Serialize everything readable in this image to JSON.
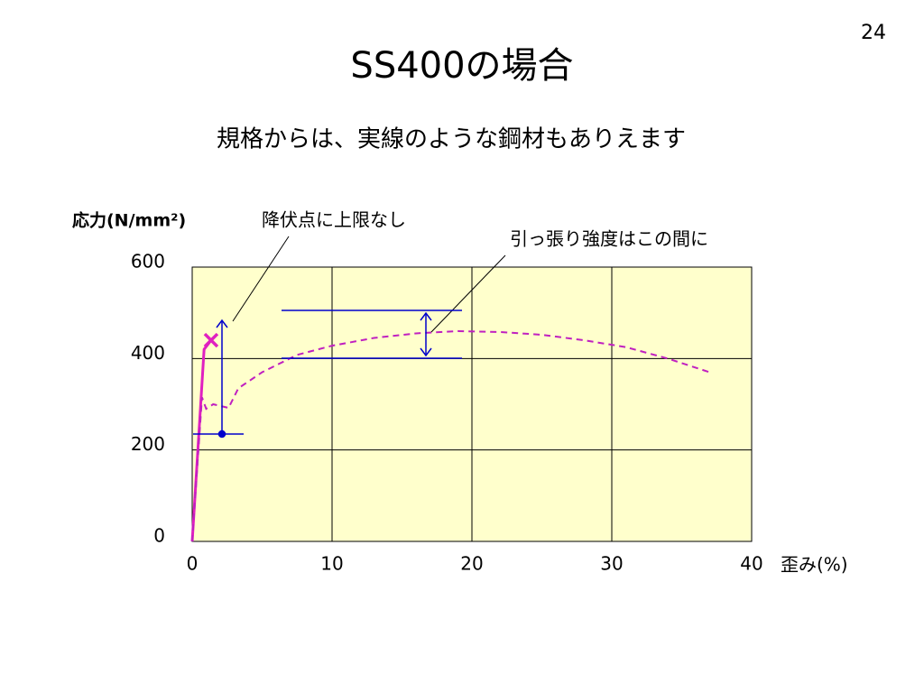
{
  "page_number": "24",
  "chart_data": {
    "type": "line",
    "title": "SS400の場合",
    "subtitle": "規格からは、実線のような鋼材もありえます",
    "ylabel": "応力(N/mm²)",
    "xlabel": "歪み(%)",
    "annotations": [
      "降伏点に上限なし",
      "引っ張り強度はこの間に"
    ],
    "xlim": [
      0,
      40
    ],
    "xticks": [
      0,
      10,
      20,
      30,
      40
    ],
    "ylim": [
      0,
      600
    ],
    "yticks": [
      0,
      200,
      400,
      600
    ],
    "grid": true,
    "background": "#ffffcc",
    "series": [
      {
        "color": "#e020c0",
        "style": "solid",
        "end_marker": "x",
        "x": [
          0,
          0.85,
          1.35
        ],
        "values": [
          0,
          420,
          440
        ]
      },
      {
        "color": "#c020c0",
        "style": "dashed",
        "x": [
          0,
          0.7,
          1.0,
          1.5,
          2.6,
          3.3,
          5,
          7.5,
          10,
          13,
          16,
          19,
          22,
          25,
          28,
          31,
          34,
          37
        ],
        "values": [
          0,
          315,
          290,
          300,
          292,
          335,
          370,
          408,
          428,
          445,
          455,
          460,
          458,
          452,
          440,
          425,
          400,
          370
        ]
      }
    ]
  }
}
